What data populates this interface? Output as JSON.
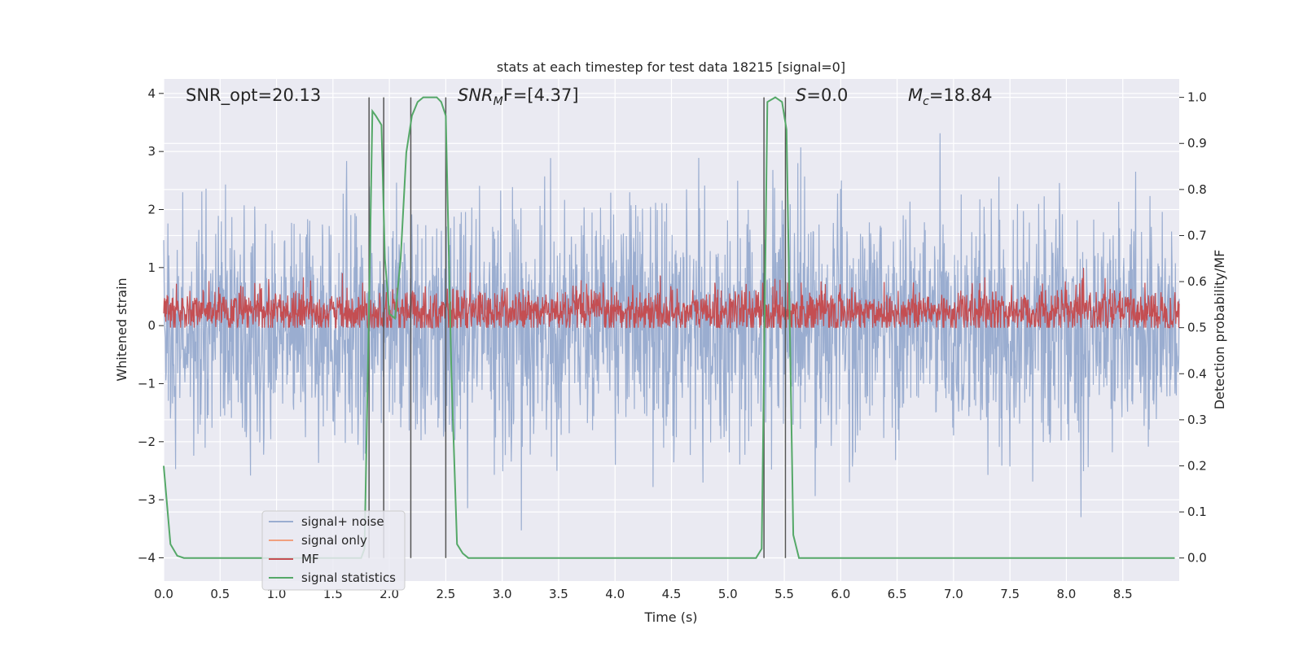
{
  "chart_data": {
    "type": "line",
    "title": "stats at each timestep for test data 18215 [signal=0]",
    "xlabel": "Time (s)",
    "ylabel": "Whitened strain",
    "ylabel_right": "Detection probability/MF",
    "xlim": [
      0,
      9.0
    ],
    "ylim": [
      -4.4,
      4.25
    ],
    "ylim_right": [
      -0.05,
      1.04
    ],
    "x_ticks": [
      0.0,
      0.5,
      1.0,
      1.5,
      2.0,
      2.5,
      3.0,
      3.5,
      4.0,
      4.5,
      5.0,
      5.5,
      6.0,
      6.5,
      7.0,
      7.5,
      8.0,
      8.5
    ],
    "x_tick_labels": [
      "0.0",
      "0.5",
      "1.0",
      "1.5",
      "2.0",
      "2.5",
      "3.0",
      "3.5",
      "4.0",
      "4.5",
      "5.0",
      "5.5",
      "6.0",
      "6.5",
      "7.0",
      "7.5",
      "8.0",
      "8.5"
    ],
    "y_ticks": [
      -4,
      -3,
      -2,
      -1,
      0,
      1,
      2,
      3,
      4
    ],
    "y_tick_labels": [
      "−4",
      "−3",
      "−2",
      "−1",
      "0",
      "1",
      "2",
      "3",
      "4"
    ],
    "y_right_ticks": [
      0.0,
      0.1,
      0.2,
      0.3,
      0.4,
      0.5,
      0.6,
      0.7,
      0.8,
      0.9,
      1.0
    ],
    "y_right_tick_labels": [
      "0.0",
      "0.1",
      "0.2",
      "0.3",
      "0.4",
      "0.5",
      "0.6",
      "0.7",
      "0.8",
      "0.9",
      "1.0"
    ],
    "annotations": {
      "snr_opt": "SNR_opt=20.13",
      "snr_mf_main": "SNR",
      "snr_mf_sub": "M",
      "snr_mf_tail": "F=[4.37]",
      "s_main": "S",
      "s_tail": "=0.0",
      "mc_main": "M",
      "mc_sub": "c",
      "mc_tail": "=18.84"
    },
    "legend": {
      "location": "lower left",
      "entries": [
        "signal+ noise",
        "signal only",
        "MF",
        "signal statistics"
      ]
    },
    "grid": true,
    "colors": {
      "background": "#eaeaf2",
      "grid": "#ffffff",
      "signal_noise": "#9aadd0",
      "signal_only": "#f0a07f",
      "mf": "#c44e52",
      "statistics": "#55a868",
      "vlines": "#555555"
    },
    "series": [
      {
        "name": "signal+ noise",
        "axis": "left",
        "description": "dense noise time series, approx. Gaussian with sigma ~1, peaks to about ±3.5",
        "samples": 2400,
        "amplitude": 1.0
      },
      {
        "name": "signal only",
        "axis": "left",
        "x": [],
        "y": []
      },
      {
        "name": "MF",
        "axis": "right",
        "description": "matched filter output, dense trace between approx. 0.5 and 0.6",
        "samples": 2400,
        "baseline": 0.535,
        "spread": 0.025
      },
      {
        "name": "signal statistics",
        "axis": "right",
        "x": [
          0.0,
          0.06,
          0.12,
          0.18,
          0.24,
          0.3,
          1.75,
          1.78,
          1.82,
          1.85,
          1.88,
          1.93,
          1.96,
          2.0,
          2.05,
          2.1,
          2.15,
          2.2,
          2.25,
          2.3,
          2.36,
          2.42,
          2.46,
          2.5,
          2.55,
          2.6,
          2.65,
          2.7,
          5.25,
          5.3,
          5.35,
          5.42,
          5.48,
          5.52,
          5.58,
          5.63,
          8.96
        ],
        "y": [
          0.2,
          0.03,
          0.005,
          0.0,
          0.0,
          0.0,
          0.0,
          0.02,
          0.55,
          0.97,
          0.96,
          0.94,
          0.65,
          0.53,
          0.52,
          0.65,
          0.88,
          0.96,
          0.99,
          1.0,
          1.0,
          1.0,
          0.99,
          0.96,
          0.4,
          0.03,
          0.01,
          0.0,
          0.0,
          0.02,
          0.99,
          1.0,
          0.99,
          0.93,
          0.05,
          0.0,
          0.0
        ]
      }
    ],
    "vlines_x": [
      1.82,
      1.95,
      2.19,
      2.5,
      5.32,
      5.51
    ],
    "vlines_range_right": [
      0.0,
      1.0
    ]
  }
}
